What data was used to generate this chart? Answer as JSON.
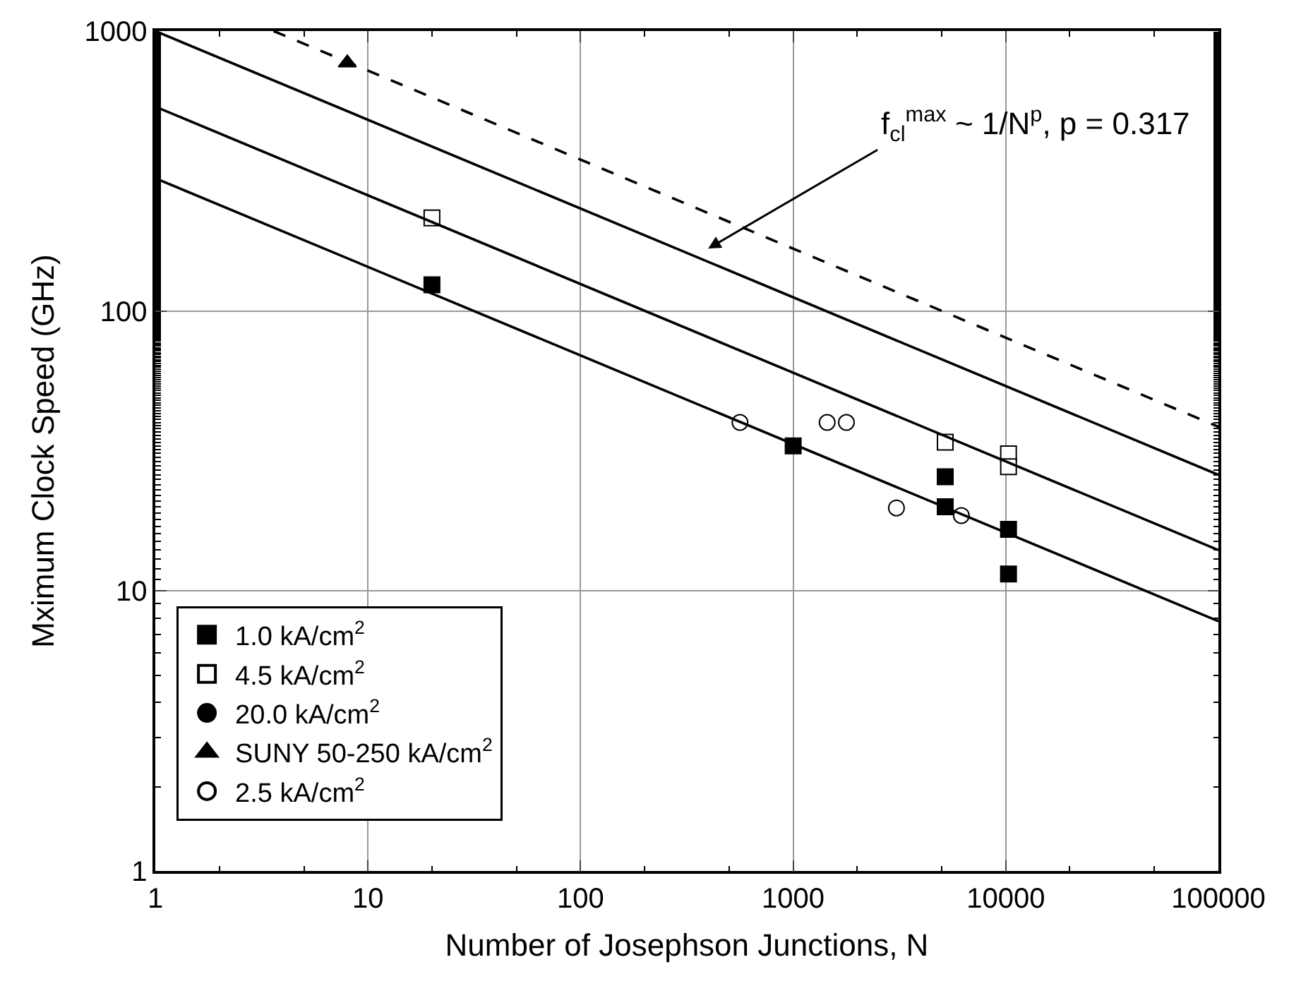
{
  "chart_data": {
    "type": "scatter",
    "xlabel": "Number of Josephson Junctions, N",
    "ylabel": "Mximum Clock Speed (GHz)",
    "log": "xy",
    "grid": true,
    "legend": "bottom left",
    "xlim": [
      1,
      100000
    ],
    "xticks": [
      1,
      10,
      100,
      1000,
      10000,
      100000
    ],
    "ylim": [
      1,
      1000
    ],
    "yticks": [
      1,
      10,
      100,
      1000
    ],
    "annotations": [
      "f$_{cl}$$^{max}$ ~ 1/N$^{p}$, p = 0.317"
    ],
    "series": [
      {
        "name": "1.0 kA/cm$^{2}$",
        "marker": "square",
        "color": "#000000",
        "x": [
          20,
          1000,
          5190,
          5190,
          10300,
          10300
        ],
        "values": [
          124,
          33,
          25.6,
          20,
          16.6,
          11.5
        ]
      },
      {
        "name": "4.5 kA/cm$^{2}$",
        "marker": "square",
        "color": "#ffffff",
        "x": [
          20,
          5190,
          10300,
          10300
        ],
        "values": [
          215,
          34,
          30.9,
          27.8
        ]
      },
      {
        "name": "20.0 kA/cm$^{2}$",
        "marker": "circle",
        "color": "#000000"
      },
      {
        "name": "SUNY 50-250 kA/cm$^{2}$",
        "marker": "triangle",
        "color": "#000000",
        "x": [
          8
        ],
        "values": [
          770
        ]
      },
      {
        "name": "2.5 kA/cm$^{2}$",
        "marker": "circle",
        "color": "#ffffff",
        "x": [
          562,
          1445,
          1780,
          3060,
          6180
        ],
        "values": [
          40,
          40,
          40,
          19.8,
          18.6
        ]
      },
      {
        "type": "line",
        "marker": "none",
        "line_style": "solid",
        "color": "#000000",
        "x": [
          1,
          100000
        ],
        "values": [
          1000,
          26
        ]
      },
      {
        "type": "line",
        "marker": "none",
        "line_style": "solid",
        "color": "#000000",
        "x": [
          1,
          100000
        ],
        "values": [
          537,
          14
        ]
      },
      {
        "type": "line",
        "marker": "none",
        "line_style": "solid",
        "color": "#000000",
        "x": [
          1,
          100000
        ],
        "values": [
          298,
          7.8
        ]
      },
      {
        "type": "line",
        "marker": "none",
        "line_style": "dashed",
        "color": "#000000",
        "x": [
          3.6,
          100000
        ],
        "values": [
          1000,
          38.6
        ]
      }
    ]
  }
}
